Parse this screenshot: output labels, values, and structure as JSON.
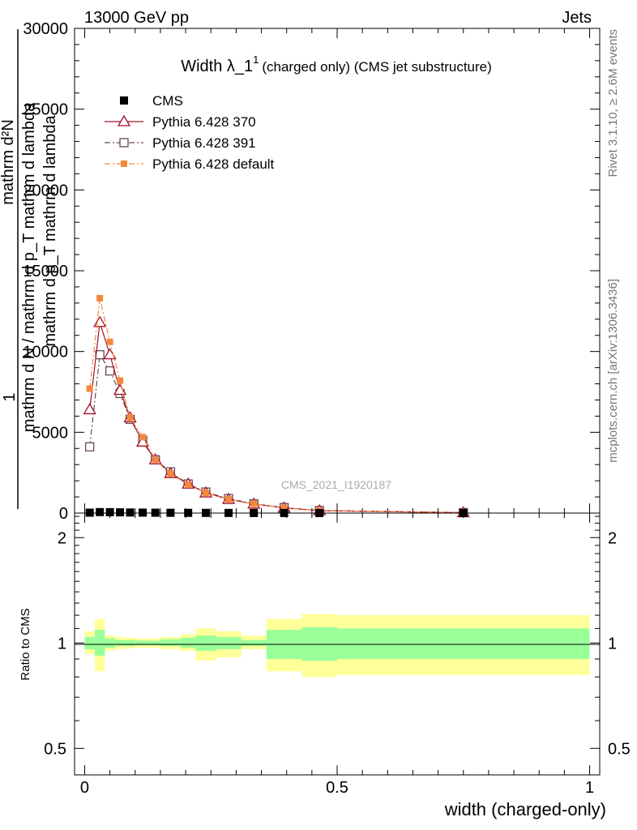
{
  "header": {
    "energy_label": "13000 GeV pp",
    "process_label": "Jets",
    "rivet_label": "Rivet 3.1.10, ≥ 2.6M events",
    "site_label": "mcplots.cern.ch [arXiv:1306.3436]",
    "watermark": "CMS_2021_I1920187"
  },
  "y_axis": {
    "one": "1",
    "numerator": "mathrm d N / mathrm d p_T mathrm d lambda",
    "denominator": "mathrm d²N",
    "denominator_sub": "mathrm d p_T mathrm d lambda"
  },
  "colors": {
    "cms": "#000000",
    "p370": "#a01024",
    "p391": "#6a4a5a",
    "pdefault": "#f5873c",
    "band_inner": "#99ff99",
    "band_outer": "#ffff99"
  },
  "chart_data": [
    {
      "type": "line",
      "title": "Width λ_1¹ (charged only) (CMS jet substructure)",
      "title_main": "Width λ_1",
      "title_sup": "1",
      "title_rest": "(charged only) (CMS jet substructure)",
      "xlabel": "",
      "ylabel": "1 / N dN/dp_T dlambda",
      "xlim": [
        -0.02,
        1.02
      ],
      "ylim": [
        0,
        30000
      ],
      "yticks": [
        0,
        5000,
        10000,
        15000,
        20000,
        25000,
        30000
      ],
      "ytick_labels": [
        "0",
        "5000",
        "10000",
        "15000",
        "20000",
        "25000",
        "30000"
      ],
      "x": [
        0.01,
        0.03,
        0.05,
        0.07,
        0.09,
        0.115,
        0.14,
        0.17,
        0.205,
        0.24,
        0.285,
        0.335,
        0.395,
        0.465,
        0.75
      ],
      "series": [
        {
          "name": "CMS",
          "marker": "square-filled",
          "values": [
            25,
            60,
            55,
            45,
            35,
            28,
            22,
            18,
            14,
            11,
            8,
            6,
            4,
            3,
            1
          ]
        },
        {
          "name": "Pythia 6.428 370",
          "marker": "triangle-open",
          "line": "solid",
          "values": [
            6400,
            11800,
            9800,
            7600,
            5900,
            4400,
            3300,
            2450,
            1800,
            1250,
            850,
            560,
            320,
            150,
            25
          ]
        },
        {
          "name": "Pythia 6.428 391",
          "marker": "square-open",
          "line": "dashdot",
          "values": [
            4100,
            9800,
            8800,
            7400,
            5800,
            4500,
            3300,
            2550,
            1800,
            1300,
            900,
            570,
            340,
            160,
            28
          ]
        },
        {
          "name": "Pythia 6.428 default",
          "marker": "square-filled-small",
          "line": "dashdot",
          "values": [
            7700,
            13300,
            10600,
            8200,
            5900,
            4700,
            3300,
            2450,
            1750,
            1250,
            850,
            570,
            320,
            150,
            25
          ]
        }
      ]
    },
    {
      "type": "line",
      "title": "",
      "xlabel": "width (charged-only)",
      "ylabel": "Ratio to CMS",
      "xlim": [
        -0.02,
        1.02
      ],
      "ylim": [
        0.42,
        2.35
      ],
      "yscale": "log",
      "yticks": [
        0.5,
        1,
        2
      ],
      "ytick_labels": [
        "0.5",
        "1",
        "2"
      ],
      "xticks": [
        0,
        0.5,
        1
      ],
      "xtick_labels": [
        "0",
        "0.5",
        "1"
      ],
      "bins": [
        {
          "x0": 0.0,
          "x1": 0.02,
          "in_lo": 0.96,
          "in_hi": 1.04,
          "out_lo": 0.93,
          "out_hi": 1.08
        },
        {
          "x0": 0.02,
          "x1": 0.04,
          "in_lo": 0.92,
          "in_hi": 1.09,
          "out_lo": 0.83,
          "out_hi": 1.17
        },
        {
          "x0": 0.04,
          "x1": 0.06,
          "in_lo": 0.97,
          "in_hi": 1.03,
          "out_lo": 0.95,
          "out_hi": 1.05
        },
        {
          "x0": 0.06,
          "x1": 0.08,
          "in_lo": 0.98,
          "in_hi": 1.02,
          "out_lo": 0.96,
          "out_hi": 1.04
        },
        {
          "x0": 0.08,
          "x1": 0.1,
          "in_lo": 0.98,
          "in_hi": 1.02,
          "out_lo": 0.965,
          "out_hi": 1.035
        },
        {
          "x0": 0.1,
          "x1": 0.13,
          "in_lo": 0.985,
          "in_hi": 1.015,
          "out_lo": 0.97,
          "out_hi": 1.03
        },
        {
          "x0": 0.13,
          "x1": 0.15,
          "in_lo": 0.985,
          "in_hi": 1.015,
          "out_lo": 0.97,
          "out_hi": 1.03
        },
        {
          "x0": 0.15,
          "x1": 0.19,
          "in_lo": 0.98,
          "in_hi": 1.025,
          "out_lo": 0.96,
          "out_hi": 1.04
        },
        {
          "x0": 0.19,
          "x1": 0.22,
          "in_lo": 0.97,
          "in_hi": 1.035,
          "out_lo": 0.95,
          "out_hi": 1.06
        },
        {
          "x0": 0.22,
          "x1": 0.26,
          "in_lo": 0.95,
          "in_hi": 1.05,
          "out_lo": 0.89,
          "out_hi": 1.1
        },
        {
          "x0": 0.26,
          "x1": 0.31,
          "in_lo": 0.96,
          "in_hi": 1.04,
          "out_lo": 0.91,
          "out_hi": 1.08
        },
        {
          "x0": 0.31,
          "x1": 0.36,
          "in_lo": 0.98,
          "in_hi": 1.02,
          "out_lo": 0.96,
          "out_hi": 1.05
        },
        {
          "x0": 0.36,
          "x1": 0.43,
          "in_lo": 0.9,
          "in_hi": 1.09,
          "out_lo": 0.83,
          "out_hi": 1.17
        },
        {
          "x0": 0.43,
          "x1": 0.5,
          "in_lo": 0.89,
          "in_hi": 1.11,
          "out_lo": 0.8,
          "out_hi": 1.21
        },
        {
          "x0": 0.5,
          "x1": 1.0,
          "in_lo": 0.9,
          "in_hi": 1.1,
          "out_lo": 0.81,
          "out_hi": 1.2
        }
      ]
    }
  ]
}
